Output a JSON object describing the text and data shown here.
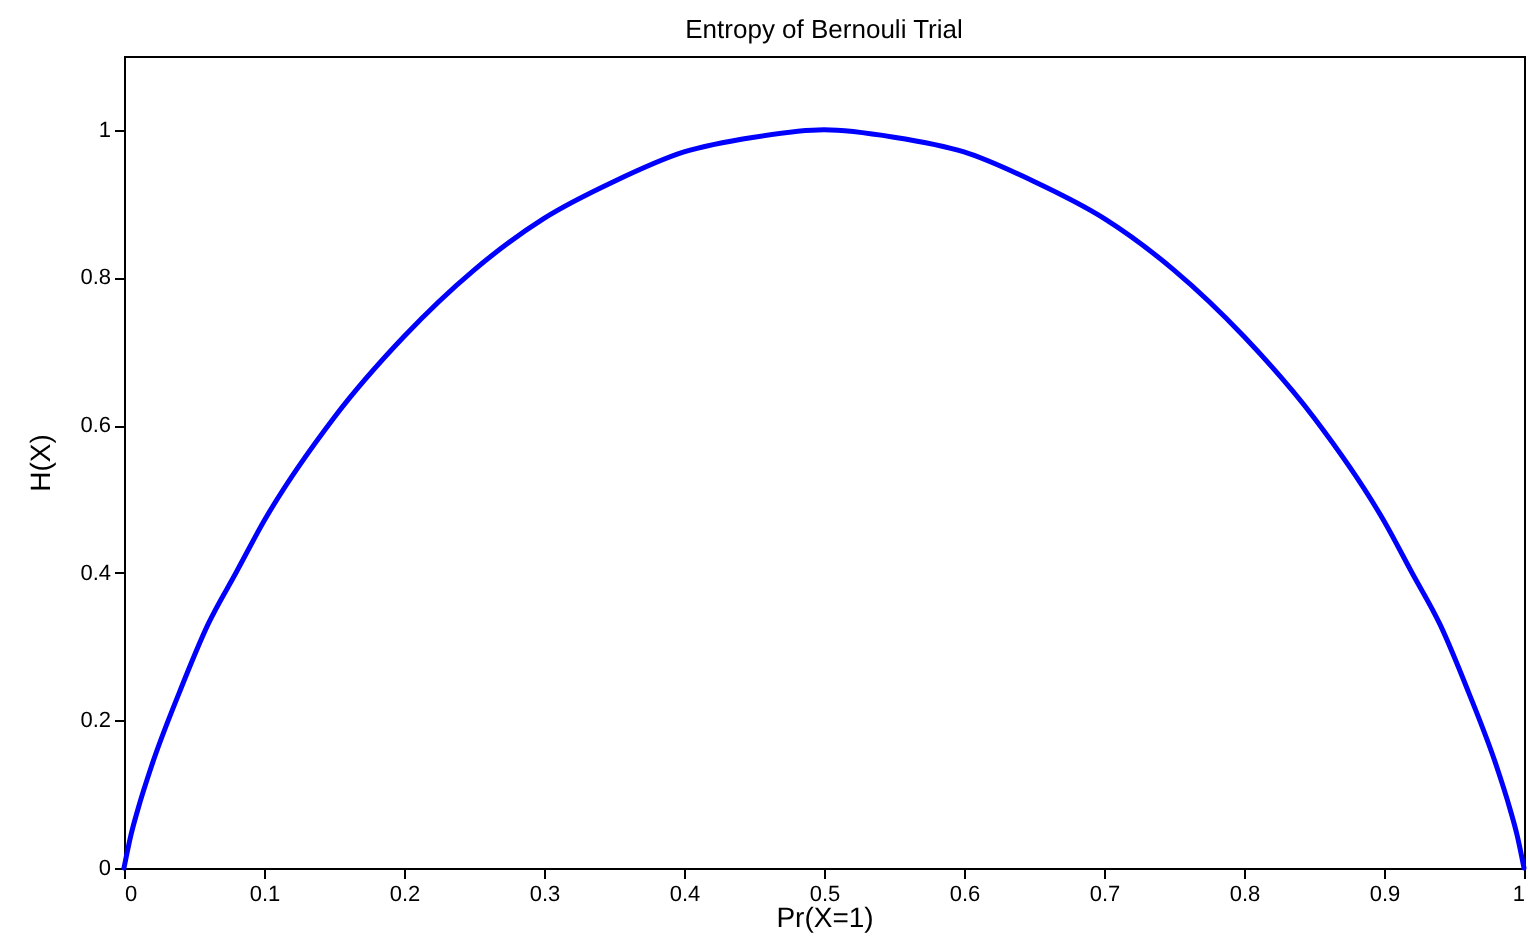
{
  "chart_data": {
    "type": "line",
    "title": "Entropy of Bernouli Trial",
    "xlabel": "Pr(X=1)",
    "ylabel": "H(X)",
    "x": [
      0,
      0.005,
      0.01,
      0.02,
      0.04,
      0.06,
      0.08,
      0.1,
      0.15,
      0.2,
      0.25,
      0.3,
      0.35,
      0.4,
      0.45,
      0.5,
      0.55,
      0.6,
      0.65,
      0.7,
      0.75,
      0.8,
      0.85,
      0.9,
      0.92,
      0.94,
      0.96,
      0.98,
      0.99,
      0.995,
      1
    ],
    "series": [
      {
        "color": "#0000ff",
        "values": [
          0,
          0.045,
          0.08,
          0.14,
          0.24,
          0.33,
          0.4,
          0.47,
          0.61,
          0.72,
          0.81,
          0.88,
          0.93,
          0.97,
          0.99,
          1,
          0.99,
          0.97,
          0.93,
          0.88,
          0.81,
          0.72,
          0.61,
          0.47,
          0.4,
          0.33,
          0.24,
          0.14,
          0.08,
          0.045,
          0
        ]
      }
    ],
    "xlim": [
      0,
      1
    ],
    "xticks": [
      0,
      0.1,
      0.2,
      0.3,
      0.4,
      0.5,
      0.6,
      0.7,
      0.8,
      0.9,
      1
    ],
    "ylim": [
      0,
      1.1
    ],
    "yticks": [
      0,
      0.2,
      0.4,
      0.6,
      0.8,
      1
    ],
    "line_style": "solid"
  }
}
